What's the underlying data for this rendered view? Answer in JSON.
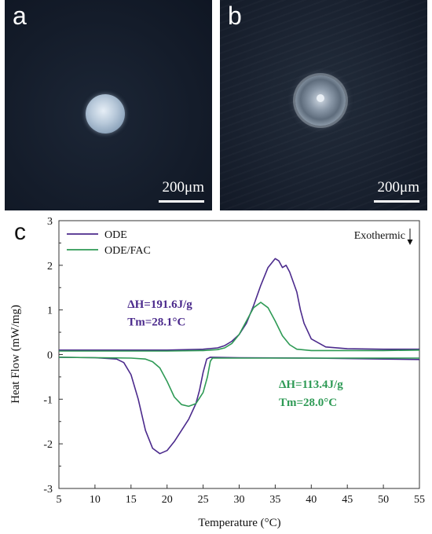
{
  "panels": {
    "a": {
      "label": "a",
      "scale": "200μm"
    },
    "b": {
      "label": "b",
      "scale": "200μm"
    },
    "c": {
      "label": "c"
    }
  },
  "chart_data": {
    "type": "line",
    "xlabel": "Temperature (°C)",
    "ylabel": "Heat Flow (mW/mg)",
    "xlim": [
      5,
      55
    ],
    "ylim": [
      -3,
      3
    ],
    "xticks": [
      5,
      10,
      15,
      20,
      25,
      30,
      35,
      40,
      45,
      50,
      55
    ],
    "yticks": [
      -3,
      -2,
      -1,
      0,
      1,
      2,
      3
    ],
    "grid": false,
    "legend_position": "top-left",
    "corner_note": "Exothermic",
    "series": [
      {
        "name": "ODE",
        "color": "#4b2a8c",
        "segments": [
          {
            "x": [
              5,
              20,
              25,
              27,
              28,
              29,
              30,
              31,
              32,
              33,
              34,
              35,
              35.5,
              36,
              36.5,
              37,
              38,
              38.5,
              39,
              40,
              42,
              45,
              50,
              55
            ],
            "y": [
              0.1,
              0.1,
              0.12,
              0.15,
              0.2,
              0.3,
              0.45,
              0.7,
              1.1,
              1.55,
              1.95,
              2.15,
              2.1,
              1.95,
              2.0,
              1.85,
              1.4,
              1.0,
              0.7,
              0.35,
              0.17,
              0.13,
              0.12,
              0.12
            ]
          },
          {
            "x": [
              5,
              10,
              13,
              14,
              15,
              16,
              17,
              18,
              19,
              20,
              21,
              22,
              23,
              24,
              24.5,
              25,
              25.5,
              26,
              30,
              40,
              50,
              55
            ],
            "y": [
              -0.06,
              -0.07,
              -0.1,
              -0.18,
              -0.45,
              -1.0,
              -1.7,
              -2.1,
              -2.22,
              -2.15,
              -1.95,
              -1.7,
              -1.45,
              -1.1,
              -0.8,
              -0.4,
              -0.1,
              -0.06,
              -0.07,
              -0.08,
              -0.1,
              -0.11
            ]
          }
        ]
      },
      {
        "name": "ODE/FAC",
        "color": "#2e9a55",
        "segments": [
          {
            "x": [
              5,
              20,
              25,
              27,
              28,
              29,
              30,
              31,
              32,
              33,
              34,
              35,
              36,
              37,
              38,
              40,
              45,
              50,
              55
            ],
            "y": [
              0.08,
              0.08,
              0.09,
              0.11,
              0.15,
              0.25,
              0.45,
              0.75,
              1.05,
              1.17,
              1.05,
              0.75,
              0.42,
              0.22,
              0.12,
              0.09,
              0.09,
              0.09,
              0.1
            ]
          },
          {
            "x": [
              5,
              10,
              15,
              17,
              18,
              19,
              20,
              21,
              22,
              23,
              24,
              25,
              25.6,
              26,
              26.3,
              27,
              30,
              40,
              50,
              55
            ],
            "y": [
              -0.06,
              -0.07,
              -0.08,
              -0.1,
              -0.16,
              -0.3,
              -0.6,
              -0.95,
              -1.12,
              -1.16,
              -1.1,
              -0.85,
              -0.5,
              -0.15,
              -0.08,
              -0.08,
              -0.08,
              -0.08,
              -0.08,
              -0.08
            ]
          }
        ]
      }
    ],
    "annotations": [
      {
        "text": "ΔH=191.6J/g",
        "series": "ODE",
        "x": 14.5,
        "y": 1.05
      },
      {
        "text": "Tm=28.1°C",
        "series": "ODE",
        "x": 14.5,
        "y": 0.65
      },
      {
        "text": "ΔH=113.4J/g",
        "series": "ODE/FAC",
        "x": 35.5,
        "y": -0.75
      },
      {
        "text": "Tm=28.0°C",
        "series": "ODE/FAC",
        "x": 35.5,
        "y": -1.15
      }
    ]
  }
}
